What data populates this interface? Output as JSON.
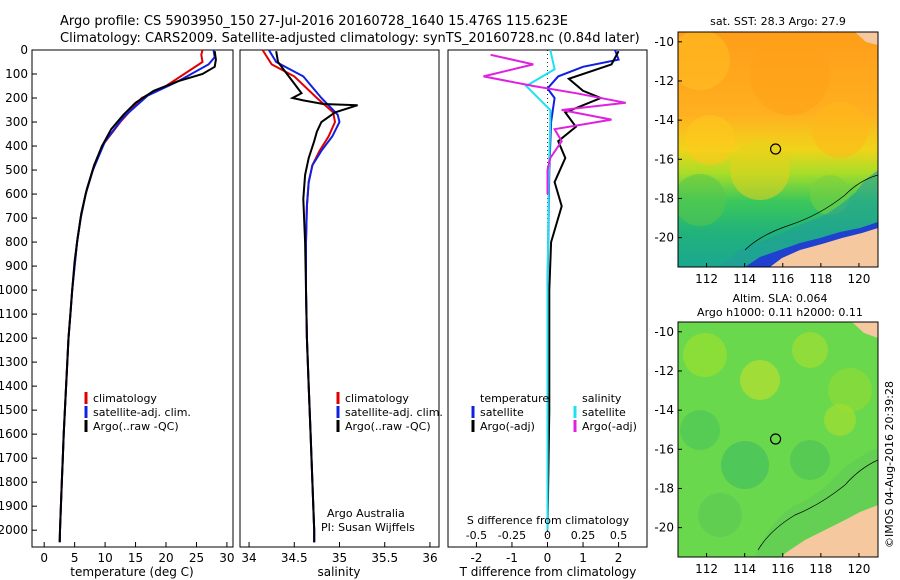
{
  "header": {
    "line1": "Argo profile: CS 5903950_150 27-Jul-2016 20160728_1640 15.476S 115.623E",
    "line2": "Climatology: CARS2009. Satellite-adjusted climatology: synTS_20160728.nc (0.84d later)"
  },
  "colors": {
    "climatology": "#e00000",
    "satellite": "#1020e0",
    "argo": "#000000",
    "cyan": "#20e0f0",
    "magenta": "#e020e0",
    "land": "#f5c8a0"
  },
  "chart_data": [
    {
      "id": "temperature",
      "type": "line",
      "xlabel": "temperature (deg C)",
      "ylabel": "",
      "xlim": [
        -2,
        31
      ],
      "ylim": [
        2070,
        0
      ],
      "xticks": [
        0,
        5,
        10,
        15,
        20,
        25,
        30
      ],
      "yticks": [
        0,
        100,
        200,
        300,
        400,
        500,
        600,
        700,
        800,
        900,
        1000,
        1100,
        1200,
        1300,
        1400,
        1500,
        1600,
        1700,
        1800,
        1900,
        2000
      ],
      "legend": {
        "position": "lower-middle",
        "entries": [
          "climatology",
          "satellite-adj. clim.",
          "Argo(..raw -QC)"
        ]
      },
      "series": [
        {
          "name": "climatology",
          "color": "#e00000",
          "points": [
            [
              26,
              0
            ],
            [
              25.8,
              20
            ],
            [
              26,
              50
            ],
            [
              20,
              150
            ],
            [
              16,
              200
            ],
            [
              12.5,
              300
            ],
            [
              9.5,
              400
            ],
            [
              8,
              500
            ],
            [
              6.8,
              600
            ],
            [
              6,
              700
            ],
            [
              5.4,
              800
            ],
            [
              5,
              900
            ],
            [
              4.6,
              1000
            ],
            [
              4.3,
              1100
            ],
            [
              4,
              1200
            ],
            [
              3.8,
              1300
            ],
            [
              3.6,
              1400
            ],
            [
              3.4,
              1500
            ],
            [
              3.2,
              1600
            ],
            [
              3.05,
              1700
            ],
            [
              2.9,
              1800
            ],
            [
              2.75,
              1900
            ],
            [
              2.6,
              2000
            ],
            [
              2.55,
              2050
            ]
          ]
        },
        {
          "name": "satellite-adj. clim.",
          "color": "#1020e0",
          "points": [
            [
              27.8,
              0
            ],
            [
              28,
              30
            ],
            [
              27,
              60
            ],
            [
              22,
              130
            ],
            [
              17,
              190
            ],
            [
              13,
              280
            ],
            [
              10,
              380
            ],
            [
              8,
              500
            ],
            [
              6.8,
              600
            ],
            [
              6,
              700
            ],
            [
              5.4,
              800
            ],
            [
              5,
              900
            ],
            [
              4.6,
              1000
            ],
            [
              4.3,
              1100
            ],
            [
              4,
              1200
            ],
            [
              3.8,
              1300
            ],
            [
              3.6,
              1400
            ],
            [
              3.4,
              1500
            ],
            [
              3.2,
              1600
            ],
            [
              3.05,
              1700
            ],
            [
              2.9,
              1800
            ],
            [
              2.75,
              1900
            ],
            [
              2.6,
              2000
            ],
            [
              2.55,
              2050
            ]
          ]
        },
        {
          "name": "Argo(..raw -QC)",
          "color": "#000000",
          "points": [
            [
              28,
              5
            ],
            [
              28.2,
              40
            ],
            [
              28,
              70
            ],
            [
              26,
              100
            ],
            [
              22,
              130
            ],
            [
              18,
              170
            ],
            [
              15,
              220
            ],
            [
              13,
              270
            ],
            [
              11,
              330
            ],
            [
              9.5,
              400
            ],
            [
              8.2,
              480
            ],
            [
              7,
              580
            ],
            [
              6.1,
              680
            ],
            [
              5.5,
              780
            ],
            [
              5,
              880
            ],
            [
              4.6,
              1000
            ],
            [
              4.3,
              1100
            ],
            [
              4,
              1200
            ],
            [
              3.8,
              1300
            ],
            [
              3.6,
              1400
            ],
            [
              3.4,
              1500
            ],
            [
              3.2,
              1600
            ],
            [
              3.05,
              1700
            ],
            [
              2.9,
              1800
            ],
            [
              2.75,
              1900
            ],
            [
              2.6,
              2000
            ],
            [
              2.55,
              2050
            ]
          ]
        }
      ]
    },
    {
      "id": "salinity",
      "type": "line",
      "xlabel": "salinity",
      "ylabel": "",
      "xlim": [
        33.9,
        36.1
      ],
      "ylim": [
        2070,
        0
      ],
      "xticks": [
        34,
        34.5,
        35,
        35.5,
        36
      ],
      "xtick_labels": [
        "34",
        "34.5",
        "35",
        "35.5",
        "36"
      ],
      "legend": {
        "position": "lower-middle",
        "entries": [
          "climatology",
          "satellite-adj. clim.",
          "Argo(..raw -QC)"
        ]
      },
      "annotation": [
        "Argo Australia",
        "PI: Susan Wijffels"
      ],
      "series": [
        {
          "name": "climatology",
          "color": "#e00000",
          "points": [
            [
              34.15,
              0
            ],
            [
              34.25,
              60
            ],
            [
              34.5,
              110
            ],
            [
              34.75,
              200
            ],
            [
              34.93,
              260
            ],
            [
              34.95,
              300
            ],
            [
              34.88,
              360
            ],
            [
              34.78,
              420
            ],
            [
              34.7,
              480
            ],
            [
              34.66,
              550
            ],
            [
              34.64,
              650
            ],
            [
              34.63,
              800
            ],
            [
              34.63,
              1000
            ],
            [
              34.64,
              1200
            ],
            [
              34.66,
              1400
            ],
            [
              34.68,
              1600
            ],
            [
              34.7,
              1800
            ],
            [
              34.72,
              2000
            ],
            [
              34.72,
              2050
            ]
          ]
        },
        {
          "name": "satellite-adj. clim.",
          "color": "#1020e0",
          "points": [
            [
              34.22,
              0
            ],
            [
              34.3,
              50
            ],
            [
              34.6,
              110
            ],
            [
              34.8,
              200
            ],
            [
              34.98,
              270
            ],
            [
              35.0,
              300
            ],
            [
              34.92,
              360
            ],
            [
              34.8,
              420
            ],
            [
              34.7,
              480
            ],
            [
              34.66,
              550
            ],
            [
              34.64,
              650
            ],
            [
              34.63,
              800
            ],
            [
              34.63,
              1000
            ],
            [
              34.64,
              1200
            ],
            [
              34.66,
              1400
            ],
            [
              34.68,
              1600
            ],
            [
              34.7,
              1800
            ],
            [
              34.72,
              2000
            ],
            [
              34.72,
              2050
            ]
          ]
        },
        {
          "name": "Argo(..raw -QC)",
          "color": "#000000",
          "points": [
            [
              34.3,
              5
            ],
            [
              34.32,
              50
            ],
            [
              34.4,
              90
            ],
            [
              34.5,
              140
            ],
            [
              34.55,
              165
            ],
            [
              34.58,
              180
            ],
            [
              34.48,
              200
            ],
            [
              34.6,
              210
            ],
            [
              34.82,
              225
            ],
            [
              35.2,
              230
            ],
            [
              34.95,
              260
            ],
            [
              34.8,
              300
            ],
            [
              34.75,
              340
            ],
            [
              34.72,
              380
            ],
            [
              34.66,
              450
            ],
            [
              34.62,
              520
            ],
            [
              34.6,
              620
            ],
            [
              34.62,
              800
            ],
            [
              34.63,
              1000
            ],
            [
              34.64,
              1200
            ],
            [
              34.66,
              1400
            ],
            [
              34.68,
              1600
            ],
            [
              34.7,
              1800
            ],
            [
              34.72,
              2000
            ],
            [
              34.72,
              2050
            ]
          ]
        }
      ]
    },
    {
      "id": "difference",
      "type": "line",
      "xlabel": "T difference from climatology",
      "secondary_xlabel": "S difference from climatology",
      "xlim": [
        -2.8,
        2.8
      ],
      "ylim": [
        2070,
        0
      ],
      "xticks": [
        -2,
        -1,
        0,
        1,
        2
      ],
      "s_ticks": [
        -0.5,
        -0.25,
        0,
        0.25,
        0.5
      ],
      "s_tick_labels": [
        "-0.5",
        "-0.25",
        "0",
        "0.25",
        "0.5"
      ],
      "legend": {
        "position": "lower-middle",
        "groups": [
          {
            "title": "temperature",
            "entries": [
              "satellite",
              "Argo(-adj)"
            ]
          },
          {
            "title": "salinity",
            "entries": [
              "satellite",
              "Argo(-adj)"
            ]
          }
        ]
      },
      "series": [
        {
          "name": "temperature satellite",
          "color": "#1020e0",
          "points": [
            [
              1.9,
              0
            ],
            [
              2,
              40
            ],
            [
              1,
              70
            ],
            [
              0.3,
              110
            ],
            [
              0,
              160
            ],
            [
              0.2,
              200
            ],
            [
              0.1,
              300
            ],
            [
              0.05,
              500
            ],
            [
              0,
              1000
            ],
            [
              0,
              2000
            ]
          ]
        },
        {
          "name": "temperature Argo(-adj)",
          "color": "#000000",
          "points": [
            [
              2,
              5
            ],
            [
              1.8,
              60
            ],
            [
              0.6,
              120
            ],
            [
              1,
              170
            ],
            [
              1.5,
              200
            ],
            [
              0.5,
              260
            ],
            [
              0.8,
              320
            ],
            [
              0.3,
              380
            ],
            [
              0.5,
              450
            ],
            [
              0.2,
              550
            ],
            [
              0.4,
              650
            ],
            [
              0.1,
              800
            ],
            [
              0.05,
              1000
            ],
            [
              0.05,
              1500
            ],
            [
              0,
              2000
            ]
          ]
        },
        {
          "name": "salinity satellite",
          "color": "#20e0f0",
          "points": [
            [
              0.02,
              0
            ],
            [
              0.05,
              80
            ],
            [
              -0.15,
              150
            ],
            [
              0.02,
              250
            ],
            [
              0.02,
              300
            ],
            [
              0.01,
              500
            ],
            [
              0,
              1000
            ],
            [
              0,
              2000
            ]
          ]
        },
        {
          "name": "salinity Argo(-adj)",
          "color": "#e020e0",
          "points": [
            [
              -0.4,
              20
            ],
            [
              -0.1,
              60
            ],
            [
              -0.45,
              110
            ],
            [
              -0.1,
              150
            ],
            [
              0.2,
              180
            ],
            [
              0.55,
              220
            ],
            [
              0.1,
              250
            ],
            [
              0.45,
              290
            ],
            [
              0.05,
              330
            ],
            [
              0.1,
              380
            ],
            [
              0.02,
              450
            ],
            [
              0,
              500
            ],
            [
              0,
              600
            ]
          ]
        }
      ]
    },
    {
      "id": "sst-map",
      "type": "heatmap",
      "title": "sat. SST: 28.3  Argo: 27.9",
      "xticks": [
        112,
        114,
        116,
        118,
        120
      ],
      "yticks": [
        -10,
        -12,
        -14,
        -16,
        -18,
        -20
      ],
      "xlim": [
        110.5,
        121
      ],
      "ylim": [
        -21.5,
        -9.5
      ],
      "marker": [
        115.623,
        -15.476
      ]
    },
    {
      "id": "sla-map",
      "type": "heatmap",
      "title": "Altim. SLA: 0.064",
      "subtitle": "Argo h1000: 0.11 h2000: 0.11",
      "xticks": [
        112,
        114,
        116,
        118,
        120
      ],
      "yticks": [
        -10,
        -12,
        -14,
        -16,
        -18,
        -20
      ],
      "xlim": [
        110.5,
        121
      ],
      "ylim": [
        -21.5,
        -9.5
      ],
      "marker": [
        115.623,
        -15.476
      ]
    }
  ],
  "legends": {
    "profile": [
      "climatology",
      "satellite-adj. clim.",
      "Argo(..raw -QC)"
    ],
    "diff_temp_title": "temperature",
    "diff_sal_title": "salinity",
    "diff_temp_sat": "satellite",
    "diff_temp_argo": "Argo(-adj)",
    "diff_sal_sat": "satellite",
    "diff_sal_argo": "Argo(-adj)"
  },
  "annotation": {
    "line1": "Argo Australia",
    "line2": "PI: Susan Wijffels"
  },
  "credit": "©IMOS 04-Aug-2016 20:39:28"
}
